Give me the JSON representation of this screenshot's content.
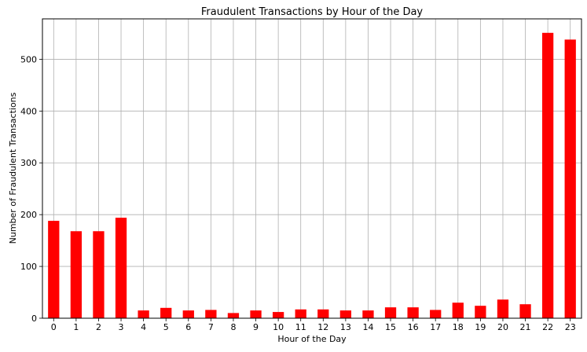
{
  "chart_data": {
    "type": "bar",
    "title": "Fraudulent Transactions by Hour of the Day",
    "xlabel": "Hour of the Day",
    "ylabel": "Number of Fraudulent Transactions",
    "categories": [
      "0",
      "1",
      "2",
      "3",
      "4",
      "5",
      "6",
      "7",
      "8",
      "9",
      "10",
      "11",
      "12",
      "13",
      "14",
      "15",
      "16",
      "17",
      "18",
      "19",
      "20",
      "21",
      "22",
      "23"
    ],
    "values": [
      188,
      168,
      168,
      194,
      15,
      20,
      15,
      16,
      10,
      15,
      12,
      17,
      17,
      15,
      15,
      21,
      21,
      16,
      30,
      24,
      36,
      27,
      551,
      538
    ],
    "ylim": [
      0,
      578
    ],
    "yticks": [
      0,
      100,
      200,
      300,
      400,
      500
    ],
    "grid": true,
    "bar_color": "#ff0000"
  }
}
